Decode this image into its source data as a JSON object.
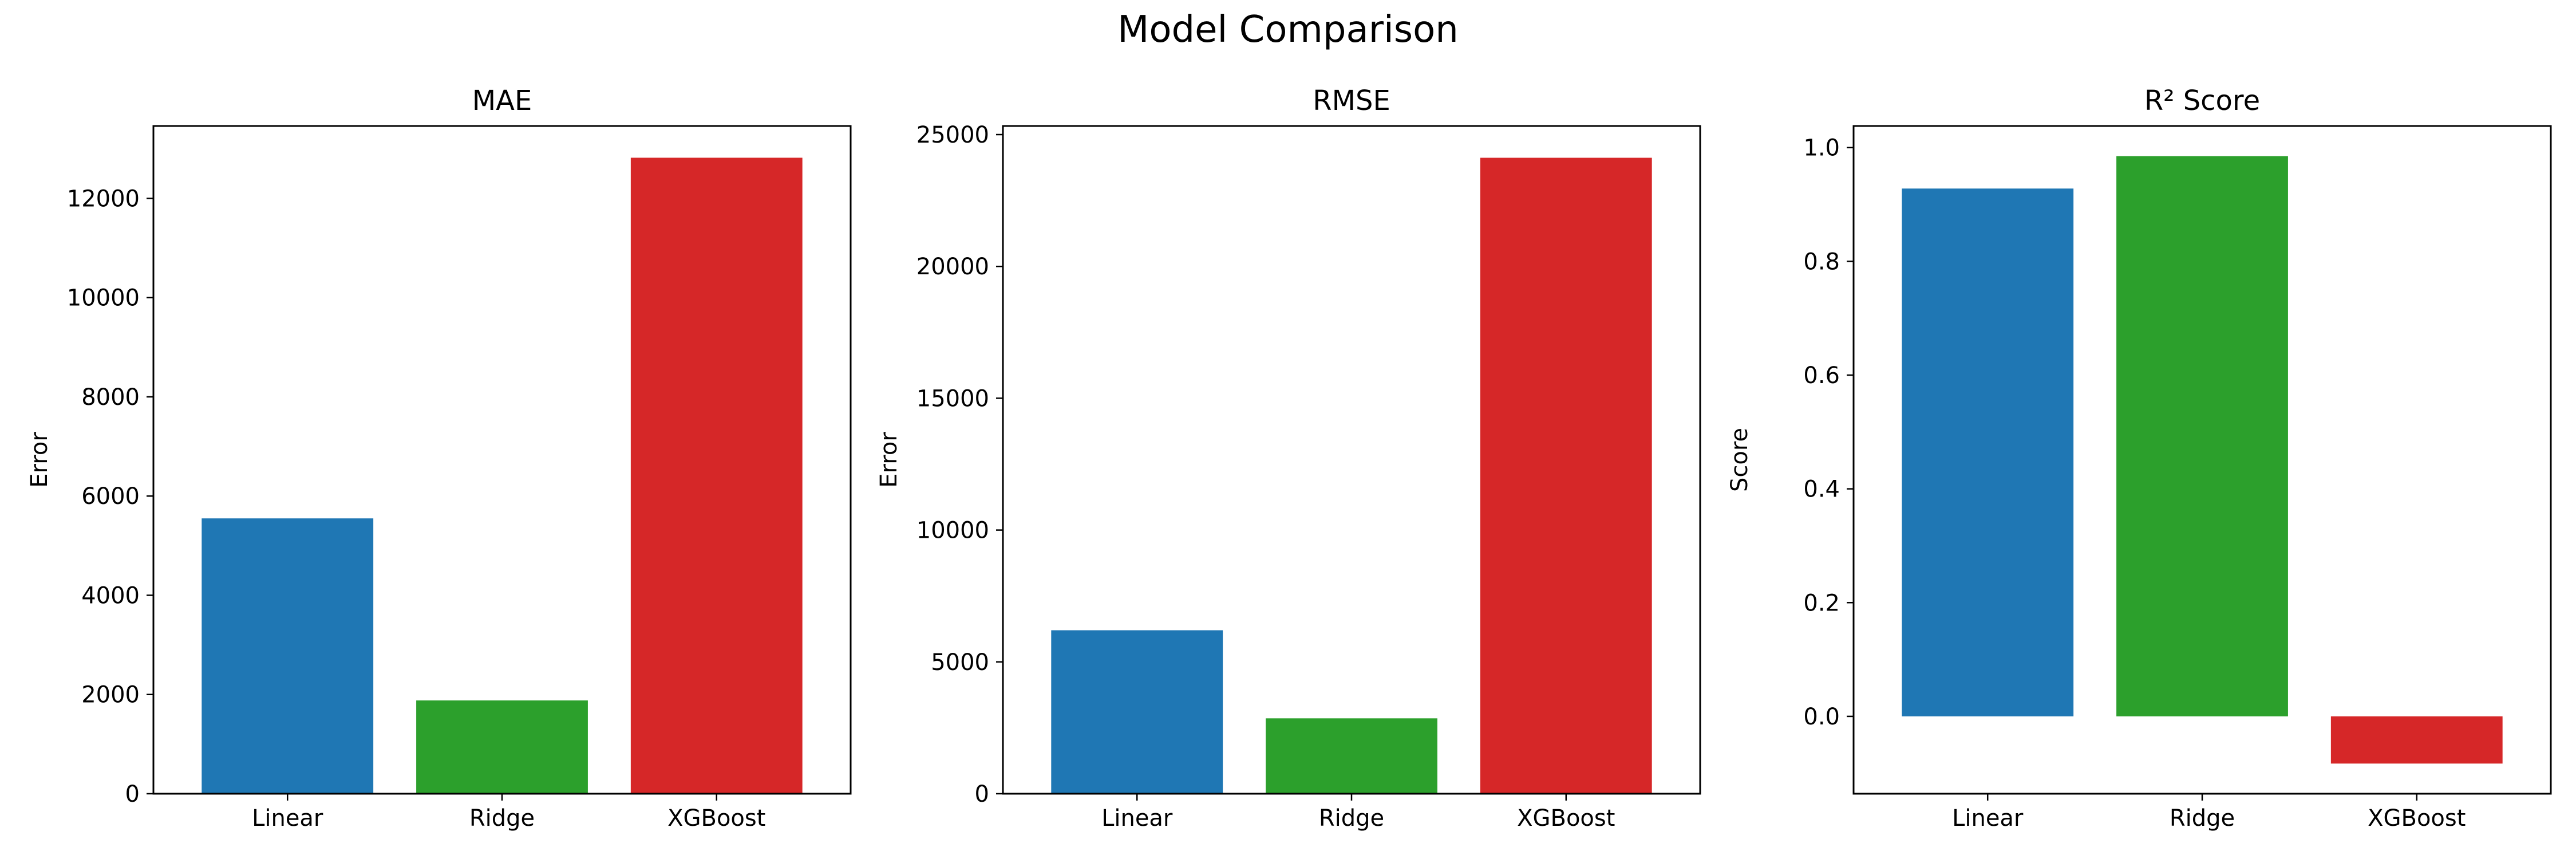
{
  "figure": {
    "title": "Model Comparison"
  },
  "chart_data": [
    {
      "type": "bar",
      "title": "MAE",
      "xlabel": "",
      "ylabel": "Error",
      "categories": [
        "Linear",
        "Ridge",
        "XGBoost"
      ],
      "values": [
        5550,
        1880,
        12820
      ],
      "colors": [
        "#1f77b4",
        "#2ca02c",
        "#d62728"
      ],
      "ylim": [
        0,
        13460
      ],
      "yticks": [
        0,
        2000,
        4000,
        6000,
        8000,
        10000,
        12000
      ],
      "ytick_labels": [
        "0",
        "2000",
        "4000",
        "6000",
        "8000",
        "10000",
        "12000"
      ],
      "grid": false
    },
    {
      "type": "bar",
      "title": "RMSE",
      "xlabel": "",
      "ylabel": "Error",
      "categories": [
        "Linear",
        "Ridge",
        "XGBoost"
      ],
      "values": [
        6200,
        2860,
        24120
      ],
      "colors": [
        "#1f77b4",
        "#2ca02c",
        "#d62728"
      ],
      "ylim": [
        0,
        25326
      ],
      "yticks": [
        0,
        5000,
        10000,
        15000,
        20000,
        25000
      ],
      "ytick_labels": [
        "0",
        "5000",
        "10000",
        "15000",
        "20000",
        "25000"
      ],
      "grid": false
    },
    {
      "type": "bar",
      "title": "R² Score",
      "xlabel": "",
      "ylabel": "Score",
      "categories": [
        "Linear",
        "Ridge",
        "XGBoost"
      ],
      "values": [
        0.928,
        0.985,
        -0.083
      ],
      "colors": [
        "#1f77b4",
        "#2ca02c",
        "#d62728"
      ],
      "ylim": [
        -0.136,
        1.038
      ],
      "yticks": [
        0,
        0.2,
        0.4,
        0.6,
        0.8,
        1.0
      ],
      "ytick_labels": [
        "0.0",
        "0.2",
        "0.4",
        "0.6",
        "0.8",
        "1.0"
      ],
      "grid": false
    }
  ]
}
